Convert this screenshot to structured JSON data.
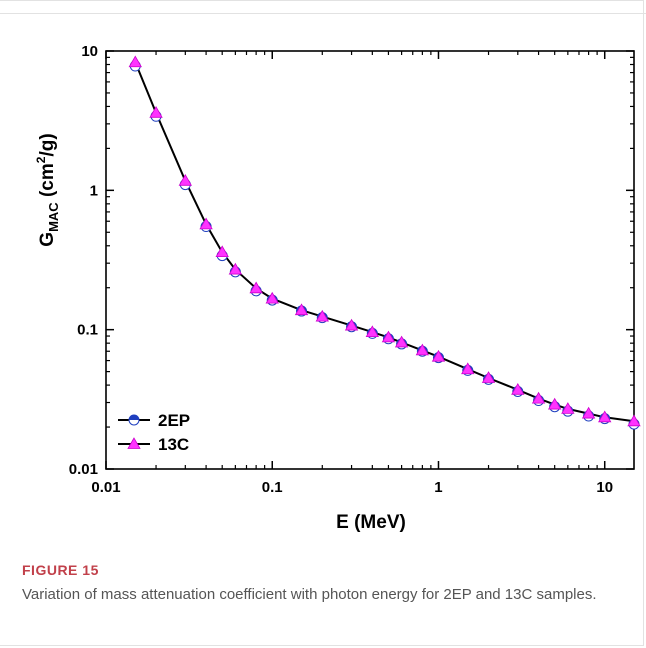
{
  "figure": {
    "label": "FIGURE 15",
    "caption": "Variation of mass attenuation coefficient with photon energy for 2EP and 13C samples."
  },
  "chart_data": {
    "type": "line",
    "xlabel": "E (MeV)",
    "ylabel_main": "G",
    "ylabel_sub": "MAC",
    "ylabel_unit_pre": " (cm",
    "ylabel_unit_sup": "2",
    "ylabel_unit_post": "/g)",
    "x_scale": "log",
    "y_scale": "log",
    "xlim": [
      0.01,
      15
    ],
    "ylim": [
      0.01,
      10
    ],
    "x_ticks": [
      0.01,
      0.1,
      1,
      10
    ],
    "x_tick_labels": [
      "0.01",
      "0.1",
      "1",
      "10"
    ],
    "y_ticks": [
      0.01,
      0.1,
      1,
      10
    ],
    "y_tick_labels": [
      "0.01",
      "0.1",
      "1",
      "10"
    ],
    "legend_position": "bottom-left",
    "colors": {
      "line": "#000000",
      "marker_2ep": "#1f3fbf",
      "marker_13c": "#ff33ff"
    },
    "x": [
      0.015,
      0.02,
      0.03,
      0.04,
      0.05,
      0.06,
      0.08,
      0.1,
      0.15,
      0.2,
      0.3,
      0.4,
      0.5,
      0.6,
      0.8,
      1,
      1.5,
      2,
      3,
      4,
      5,
      6,
      8,
      10,
      15
    ],
    "series": [
      {
        "name": "2EP",
        "marker": "circle-half",
        "values": [
          7.8,
          3.4,
          1.1,
          0.55,
          0.34,
          0.26,
          0.19,
          0.163,
          0.136,
          0.122,
          0.105,
          0.094,
          0.086,
          0.079,
          0.07,
          0.063,
          0.051,
          0.044,
          0.036,
          0.031,
          0.028,
          0.026,
          0.024,
          0.023,
          0.021
        ]
      },
      {
        "name": "13C",
        "marker": "triangle",
        "values": [
          8.3,
          3.6,
          1.17,
          0.57,
          0.36,
          0.27,
          0.198,
          0.167,
          0.138,
          0.124,
          0.107,
          0.096,
          0.088,
          0.081,
          0.071,
          0.064,
          0.052,
          0.045,
          0.037,
          0.032,
          0.029,
          0.027,
          0.025,
          0.0235,
          0.022
        ]
      }
    ]
  }
}
